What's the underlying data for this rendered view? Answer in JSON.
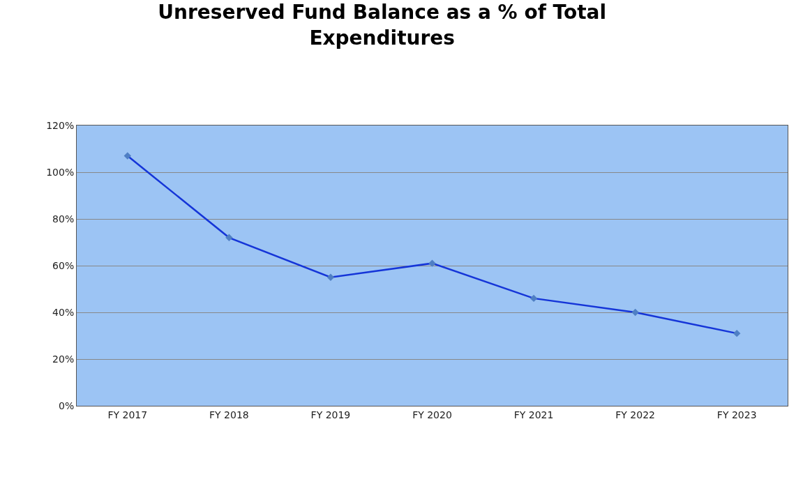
{
  "chart_data": {
    "type": "line",
    "title": "Unreserved Fund Balance as a % of Total\nExpenditures",
    "categories": [
      "FY 2017",
      "FY 2018",
      "FY 2019",
      "FY 2020",
      "FY 2021",
      "FY 2022",
      "FY 2023"
    ],
    "series": [
      {
        "color": "#1535d8",
        "values": [
          107,
          72,
          55,
          61,
          46,
          40,
          31
        ]
      }
    ],
    "ylim": [
      0,
      120
    ],
    "yticks": [
      {
        "value": 0,
        "label": "0%"
      },
      {
        "value": 20,
        "label": "20%"
      },
      {
        "value": 40,
        "label": "40%"
      },
      {
        "value": 60,
        "label": "60%"
      },
      {
        "value": 80,
        "label": "80%"
      },
      {
        "value": 100,
        "label": "100%"
      },
      {
        "value": 120,
        "label": "120%"
      }
    ],
    "grid": "y",
    "marker": "diamond",
    "line_style": "solid",
    "legend": false
  }
}
